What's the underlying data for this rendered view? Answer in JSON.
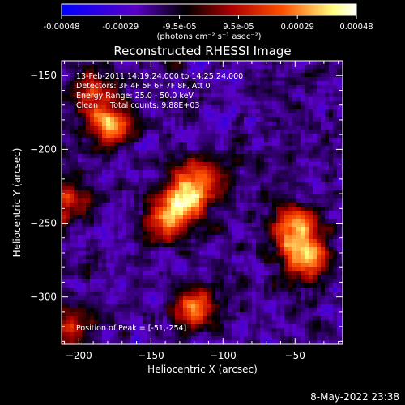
{
  "colorbar": {
    "ticks": [
      "-0.00048",
      "-0.00029",
      "-9.5e-05",
      "9.5e-05",
      "0.00029",
      "0.00048"
    ],
    "units": "(photons cm⁻² s⁻¹ asec⁻²)",
    "colors": [
      "#0000ff",
      "#5a00c8",
      "#000000",
      "#b00000",
      "#ff5000",
      "#ffff80",
      "#ffffff"
    ]
  },
  "chart_data": {
    "type": "heatmap",
    "title": "Reconstructed RHESSI Image",
    "xlabel": "Heliocentric X (arcsec)",
    "ylabel": "Heliocentric Y (arcsec)",
    "xlim": [
      -212,
      -17
    ],
    "ylim": [
      -332,
      -140
    ],
    "xticks": [
      -200,
      -150,
      -100,
      -50
    ],
    "yticks": [
      -150,
      -200,
      -250,
      -300
    ],
    "info_lines": [
      "13-Feb-2011 14:19:24.000 to 14:25:24.000",
      "Detectors: 3F 4F 5F 6F 7F 8F, Att 0",
      "Energy Range: 25.0 - 50.0 keV",
      "Clean     Total counts: 9.88E+03"
    ],
    "peak_label": "Position of Peak = [-51,-254]",
    "peak": [
      -51,
      -254
    ],
    "sources": [
      {
        "x": -178,
        "y": -183,
        "amp": 0.82
      },
      {
        "x": -192,
        "y": -162,
        "amp": 0.55
      },
      {
        "x": -125,
        "y": -232,
        "amp": 0.95
      },
      {
        "x": -140,
        "y": -248,
        "amp": 0.75
      },
      {
        "x": -112,
        "y": -218,
        "amp": 0.6
      },
      {
        "x": -51,
        "y": -254,
        "amp": 1.0
      },
      {
        "x": -42,
        "y": -275,
        "amp": 0.8
      },
      {
        "x": -120,
        "y": -307,
        "amp": 0.75
      },
      {
        "x": -208,
        "y": -235,
        "amp": 0.6
      },
      {
        "x": -205,
        "y": -320,
        "amp": 0.45
      }
    ]
  },
  "footer": {
    "date": "8-May-2022 23:38"
  }
}
